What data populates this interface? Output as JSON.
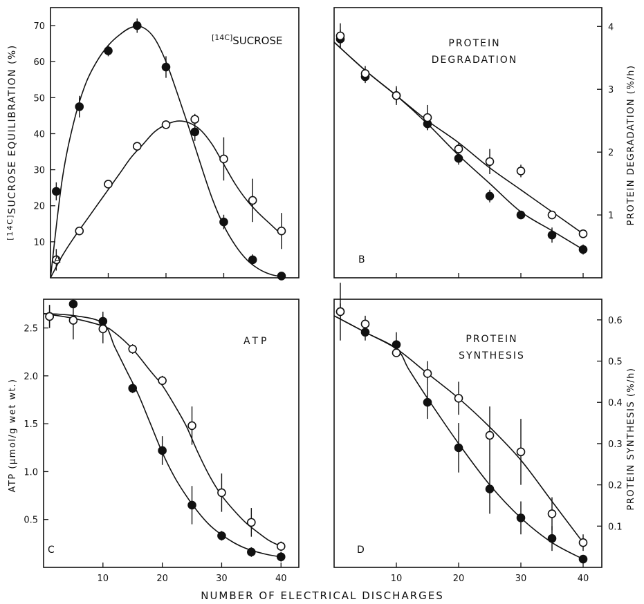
{
  "figure": {
    "xlabel": "NUMBER OF ELECTRICAL DISCHARGES"
  },
  "chart_data": [
    {
      "id": "A",
      "type": "scatter",
      "panel_letter": "A",
      "annotation_prefix": "[14C]",
      "annotation_main": "SUCROSE",
      "ylabel_prefix": "[14C]",
      "ylabel_main": "SUCROSE EQUILIBRATION (%)",
      "ylabel_side": "left",
      "xlim": [
        0,
        43
      ],
      "ylim": [
        0,
        75
      ],
      "xticks": [
        10,
        20,
        30,
        40
      ],
      "xtick_labels_shown": false,
      "yticks": [
        10,
        20,
        30,
        40,
        50,
        60,
        70
      ],
      "series": [
        {
          "marker": "filled-circle",
          "x": [
            1,
            5,
            10,
            15,
            20,
            25,
            30,
            35,
            40
          ],
          "y": [
            24,
            47.5,
            63,
            70,
            58.5,
            40.5,
            15.5,
            5,
            0.5
          ],
          "err": [
            2.5,
            3,
            1.5,
            2,
            3,
            2.5,
            2,
            1.5,
            0
          ],
          "curve_x": [
            0,
            2,
            4,
            6,
            8,
            10,
            12,
            14,
            16,
            18,
            20,
            22,
            24,
            26,
            28,
            30,
            32,
            34,
            36,
            38,
            40
          ],
          "curve_y": [
            0,
            27,
            43,
            53.5,
            60,
            64.5,
            67.5,
            69.5,
            69.5,
            66.5,
            60,
            51,
            41.5,
            31.5,
            22,
            14.5,
            9,
            5,
            2.5,
            1,
            0.3
          ]
        },
        {
          "marker": "open-circle",
          "x": [
            1,
            5,
            10,
            15,
            20,
            25,
            30,
            35,
            40
          ],
          "y": [
            5,
            13,
            26,
            36.5,
            42.5,
            44,
            33,
            21.5,
            13
          ],
          "err": [
            3,
            1,
            1,
            1,
            1,
            1.5,
            6,
            6,
            5
          ],
          "curve_x": [
            0,
            2,
            4,
            6,
            8,
            10,
            12,
            14,
            16,
            18,
            20,
            22,
            24,
            26,
            28,
            30,
            32,
            34,
            36,
            38,
            40
          ],
          "curve_y": [
            0,
            6,
            11,
            15.5,
            20,
            24.5,
            29,
            33.5,
            37,
            40.5,
            42.5,
            43.5,
            43,
            41,
            37,
            31.5,
            26,
            21.5,
            18,
            15,
            12
          ]
        }
      ]
    },
    {
      "id": "B",
      "type": "scatter",
      "panel_letter": "B",
      "annotation_line1": "PROTEIN",
      "annotation_line2": "DEGRADATION",
      "ylabel": "PROTEIN DEGRADATION (%/h)",
      "ylabel_side": "right",
      "xlim": [
        0,
        43
      ],
      "ylim": [
        0,
        4.3
      ],
      "xticks": [
        10,
        20,
        30,
        40
      ],
      "xtick_labels_shown": false,
      "yticks": [
        1,
        2,
        3,
        4
      ],
      "series": [
        {
          "marker": "filled-circle",
          "x": [
            1,
            5,
            10,
            15,
            20,
            25,
            30,
            35,
            40
          ],
          "y": [
            3.8,
            3.2,
            2.9,
            2.45,
            1.9,
            1.3,
            1.0,
            0.68,
            0.45
          ],
          "err": [
            0.15,
            0.1,
            0.12,
            0.1,
            0.1,
            0.1,
            0.05,
            0.12,
            0.08
          ],
          "curve_x": [
            0,
            5,
            10,
            15,
            20,
            25,
            30,
            35,
            40
          ],
          "curve_y": [
            3.75,
            3.3,
            2.9,
            2.45,
            1.95,
            1.5,
            1.05,
            0.75,
            0.45
          ]
        },
        {
          "marker": "open-circle",
          "x": [
            1,
            5,
            10,
            15,
            20,
            25,
            30,
            35,
            40
          ],
          "y": [
            3.85,
            3.25,
            2.9,
            2.55,
            2.05,
            1.85,
            1.7,
            1.0,
            0.7
          ],
          "err": [
            0.2,
            0.12,
            0.15,
            0.2,
            0.1,
            0.2,
            0.1,
            0.05,
            0.05
          ],
          "curve_x": [
            0,
            5,
            10,
            15,
            20,
            25,
            30,
            35,
            40
          ],
          "curve_y": [
            3.75,
            3.3,
            2.9,
            2.5,
            2.15,
            1.75,
            1.4,
            1.05,
            0.7
          ]
        }
      ]
    },
    {
      "id": "C",
      "type": "scatter",
      "panel_letter": "C",
      "annotation": "ATP",
      "ylabel": "ATP (μmol/g wet wt.)",
      "ylabel_side": "left",
      "xlim": [
        0,
        43
      ],
      "ylim": [
        0,
        2.8
      ],
      "xticks": [
        10,
        20,
        30,
        40
      ],
      "xtick_labels": [
        "10",
        "20",
        "30",
        "40"
      ],
      "yticks": [
        0.5,
        1.0,
        1.5,
        2.0,
        2.5
      ],
      "ytick_labels": [
        "0.5",
        "1.0",
        "1.5",
        "2.0",
        "2.5"
      ],
      "series": [
        {
          "marker": "filled-circle",
          "x": [
            1,
            5,
            10,
            15,
            20,
            25,
            30,
            35,
            40
          ],
          "y": [
            2.62,
            2.75,
            2.57,
            1.87,
            1.22,
            0.65,
            0.33,
            0.16,
            0.11
          ],
          "err": [
            0.12,
            0,
            0.1,
            0.05,
            0.15,
            0.2,
            0.05,
            0.05,
            0.05
          ],
          "curve_x": [
            0,
            5,
            10,
            12,
            14,
            16,
            18,
            20,
            22,
            24,
            26,
            28,
            30,
            32,
            34,
            36,
            38,
            40
          ],
          "curve_y": [
            2.65,
            2.63,
            2.55,
            2.3,
            2.05,
            1.8,
            1.5,
            1.2,
            0.95,
            0.75,
            0.58,
            0.44,
            0.34,
            0.26,
            0.2,
            0.16,
            0.13,
            0.11
          ]
        },
        {
          "marker": "open-circle",
          "x": [
            1,
            5,
            10,
            15,
            20,
            25,
            30,
            35,
            40
          ],
          "y": [
            2.62,
            2.58,
            2.49,
            2.28,
            1.95,
            1.48,
            0.78,
            0.47,
            0.22
          ],
          "err": [
            0.12,
            0.2,
            0.15,
            0.05,
            0.05,
            0.2,
            0.2,
            0.15,
            0.05
          ],
          "curve_x": [
            0,
            5,
            10,
            12,
            15,
            18,
            20,
            22,
            24,
            26,
            28,
            30,
            32,
            34,
            36,
            38,
            40
          ],
          "curve_y": [
            2.65,
            2.6,
            2.52,
            2.45,
            2.28,
            2.05,
            1.9,
            1.7,
            1.48,
            1.2,
            0.95,
            0.75,
            0.6,
            0.47,
            0.37,
            0.28,
            0.22
          ]
        }
      ]
    },
    {
      "id": "D",
      "type": "scatter",
      "panel_letter": "D",
      "annotation_line1": "PROTEIN",
      "annotation_line2": "SYNTHESIS",
      "ylabel": "PROTEIN SYNTHESIS (%/h)",
      "ylabel_side": "right",
      "xlim": [
        0,
        43
      ],
      "ylim": [
        0,
        0.65
      ],
      "xticks": [
        10,
        20,
        30,
        40
      ],
      "xtick_labels": [
        "10",
        "20",
        "30",
        "40"
      ],
      "yticks": [
        0.1,
        0.2,
        0.3,
        0.4,
        0.5,
        0.6
      ],
      "ytick_labels": [
        "0.1",
        "0.2",
        "0.3",
        "0.4",
        "0.5",
        "0.6"
      ],
      "series": [
        {
          "marker": "filled-circle",
          "x": [
            1,
            5,
            10,
            15,
            20,
            25,
            30,
            35,
            40
          ],
          "y": [
            0.62,
            0.57,
            0.54,
            0.4,
            0.29,
            0.19,
            0.12,
            0.07,
            0.02
          ],
          "err": [
            0.07,
            0.02,
            0.03,
            0.04,
            0.06,
            0.06,
            0.04,
            0.03,
            0.01
          ],
          "curve_x": [
            0,
            5,
            10,
            12,
            15,
            20,
            25,
            30,
            35,
            40
          ],
          "curve_y": [
            0.61,
            0.57,
            0.53,
            0.48,
            0.41,
            0.3,
            0.2,
            0.12,
            0.06,
            0.02
          ]
        },
        {
          "marker": "open-circle",
          "x": [
            1,
            5,
            10,
            15,
            20,
            25,
            30,
            35,
            40
          ],
          "y": [
            0.62,
            0.59,
            0.52,
            0.47,
            0.41,
            0.32,
            0.28,
            0.13,
            0.06
          ],
          "err": [
            0.02,
            0.02,
            0,
            0.03,
            0.04,
            0.07,
            0.08,
            0.04,
            0.02
          ],
          "curve_x": [
            0,
            5,
            10,
            15,
            20,
            25,
            30,
            35,
            40
          ],
          "curve_y": [
            0.61,
            0.57,
            0.53,
            0.47,
            0.41,
            0.34,
            0.26,
            0.16,
            0.06
          ]
        }
      ]
    }
  ]
}
